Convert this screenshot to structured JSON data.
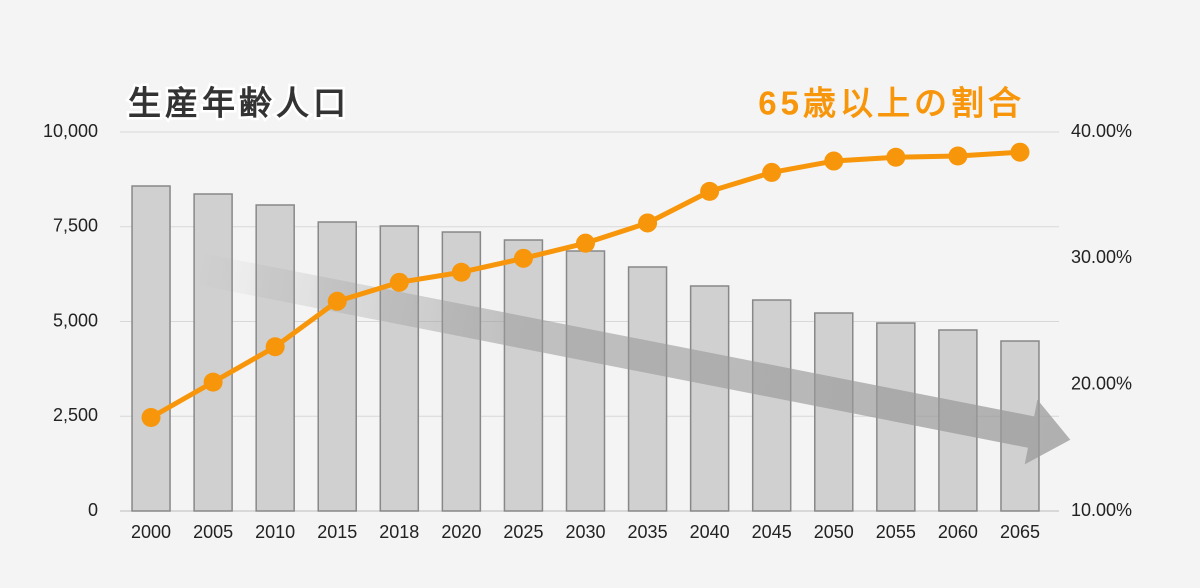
{
  "chart_data": {
    "type": "bar",
    "categories": [
      "2000",
      "2005",
      "2010",
      "2015",
      "2018",
      "2020",
      "2025",
      "2030",
      "2035",
      "2040",
      "2045",
      "2050",
      "2055",
      "2060",
      "2065"
    ],
    "series": [
      {
        "name": "生産年齢人口",
        "type": "bar",
        "color": "#d0d0d0",
        "values": [
          8575,
          8364,
          8074,
          7625,
          7520,
          7361,
          7150,
          6860,
          6438,
          5937,
          5567,
          5224,
          4960,
          4776,
          4485
        ]
      },
      {
        "name": "65歳以上の割合",
        "type": "line",
        "axis": "y2",
        "color": "#f7960a",
        "values": [
          17.4,
          20.2,
          23.0,
          26.6,
          28.1,
          28.9,
          30.0,
          31.2,
          32.8,
          35.3,
          36.8,
          37.7,
          38.0,
          38.1,
          38.4
        ]
      }
    ],
    "ylim": [
      0,
      10000
    ],
    "yticks": [
      0,
      {
        "value": 2500,
        "label": "2,500"
      },
      {
        "value": 5000,
        "label": "5,000"
      },
      {
        "value": 7500,
        "label": "7,500"
      },
      {
        "value": 10000,
        "label": "10,000"
      }
    ],
    "y2lim": [
      10,
      40
    ],
    "y2ticks": [
      {
        "value": 10,
        "label": "10.00%"
      },
      {
        "value": 20,
        "label": "20.00%"
      },
      {
        "value": 30,
        "label": "30.00%"
      },
      {
        "value": 40,
        "label": "40.00%"
      }
    ],
    "grid": true
  }
}
